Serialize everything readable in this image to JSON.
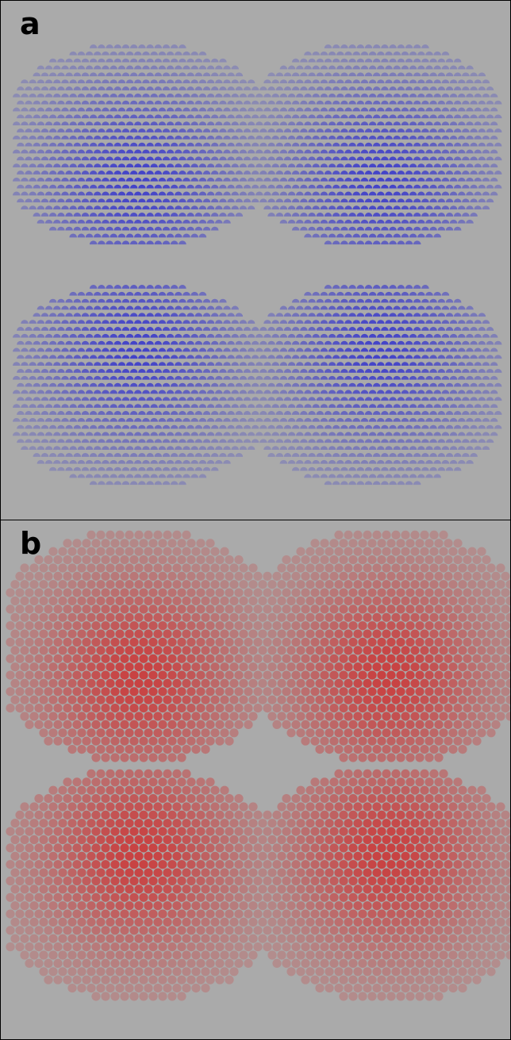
{
  "panels": [
    {
      "label": "a",
      "color": "#2a2ad0",
      "dot_style": "half-disc"
    },
    {
      "label": "b",
      "color": "#d02828",
      "dot_style": "disc"
    }
  ],
  "background_color": "#aaaaaa",
  "border_color": "#000000"
}
